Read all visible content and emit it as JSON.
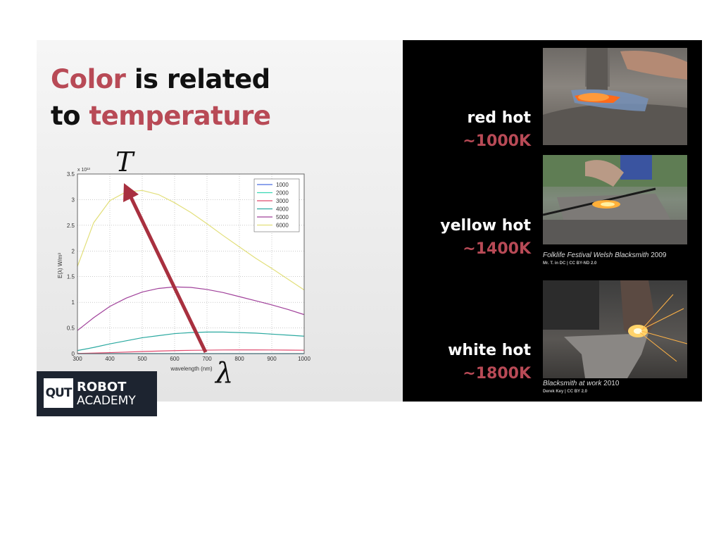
{
  "slide": {
    "title_line1_accent": "Color",
    "title_line1_rest": " is related",
    "title_line2_prefix": "to ",
    "title_line2_accent": "temperature",
    "accent_color": "#b84a56"
  },
  "chart_data": {
    "type": "line",
    "title": "",
    "xlabel": "wavelength (nm)",
    "ylabel": "E(λ) W/m³",
    "y_multiplier": "x 10¹³",
    "xlim": [
      300,
      1000
    ],
    "ylim": [
      0,
      3.5
    ],
    "xticks": [
      300,
      400,
      500,
      600,
      700,
      800,
      900,
      1000
    ],
    "yticks": [
      0,
      0.5,
      1,
      1.5,
      2,
      2.5,
      3,
      3.5
    ],
    "grid": true,
    "legend_position": "top-right",
    "x": [
      300,
      350,
      400,
      450,
      500,
      550,
      600,
      650,
      700,
      750,
      800,
      850,
      900,
      950,
      1000
    ],
    "series": [
      {
        "name": "1000",
        "color": "#4a6ee0",
        "values": [
          0,
          0,
          0,
          0,
          0,
          0,
          0,
          0,
          0,
          0,
          0,
          0,
          0,
          0,
          0
        ]
      },
      {
        "name": "2000",
        "color": "#37d8b4",
        "values": [
          0,
          0,
          0,
          0,
          0,
          0,
          0,
          0,
          0,
          0,
          0,
          0,
          0,
          0,
          0
        ]
      },
      {
        "name": "3000",
        "color": "#e04a6e",
        "values": [
          0.004,
          0.011,
          0.02,
          0.03,
          0.041,
          0.05,
          0.058,
          0.064,
          0.068,
          0.071,
          0.072,
          0.072,
          0.071,
          0.069,
          0.066
        ]
      },
      {
        "name": "4000",
        "color": "#2aa9a0",
        "values": [
          0.06,
          0.12,
          0.19,
          0.25,
          0.31,
          0.35,
          0.39,
          0.41,
          0.42,
          0.42,
          0.41,
          0.4,
          0.38,
          0.36,
          0.34
        ]
      },
      {
        "name": "5000",
        "color": "#a0409a",
        "values": [
          0.45,
          0.7,
          0.92,
          1.08,
          1.2,
          1.27,
          1.3,
          1.29,
          1.25,
          1.19,
          1.11,
          1.03,
          0.95,
          0.86,
          0.76
        ]
      },
      {
        "name": "6000",
        "color": "#e2df7a",
        "values": [
          1.7,
          2.55,
          2.98,
          3.15,
          3.18,
          3.1,
          2.94,
          2.75,
          2.53,
          2.3,
          2.08,
          1.86,
          1.66,
          1.45,
          1.24
        ]
      }
    ],
    "annotation_T": "T",
    "annotation_lambda": "λ"
  },
  "captions": [
    {
      "label": "red hot",
      "temp": "~1000K"
    },
    {
      "label": "yellow hot",
      "temp": "~1400K"
    },
    {
      "label": "white hot",
      "temp": "~1800K"
    }
  ],
  "credits": [
    {
      "title": "Folklife Festival Welsh Blacksmith",
      "year": "2009",
      "sub": "Mr. T. in DC | CC BY-ND 2.0"
    },
    {
      "title": "Blacksmith at work",
      "year": "2010",
      "sub": "Derek Key | CC BY 2.0"
    }
  ],
  "logo": {
    "qut": "QUT",
    "line1": "ROBOT",
    "line2": "ACADEMY"
  }
}
